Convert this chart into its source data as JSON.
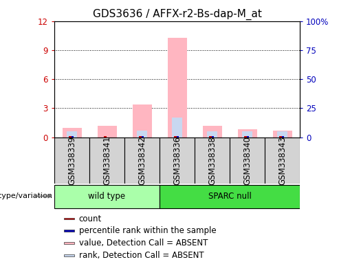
{
  "title": "GDS3636 / AFFX-r2-Bs-dap-M_at",
  "samples": [
    "GSM338339",
    "GSM338341",
    "GSM338342",
    "GSM338336",
    "GSM338338",
    "GSM338340",
    "GSM338343"
  ],
  "pink_bars": [
    1.0,
    1.2,
    3.4,
    10.3,
    1.2,
    0.8,
    0.7
  ],
  "light_blue_bars": [
    5.0,
    0.0,
    6.0,
    17.0,
    5.0,
    5.0,
    5.0
  ],
  "red_bar_heights": [
    0.12,
    0.12,
    0.12,
    0.12,
    0.12,
    0.12,
    0.12
  ],
  "blue_bar_heights": [
    0.12,
    0.0,
    0.12,
    0.12,
    0.12,
    0.12,
    0.12
  ],
  "ylim_left": [
    0,
    12
  ],
  "ylim_right": [
    0,
    100
  ],
  "yticks_left": [
    0,
    3,
    6,
    9,
    12
  ],
  "ytick_labels_left": [
    "0",
    "3",
    "6",
    "9",
    "12"
  ],
  "yticks_right": [
    0,
    25,
    50,
    75,
    100
  ],
  "ytick_labels_right": [
    "0",
    "25",
    "50",
    "75",
    "100%"
  ],
  "groups": [
    {
      "label": "wild type",
      "start": 0,
      "end": 3,
      "color": "#AAFFAA"
    },
    {
      "label": "SPARC null",
      "start": 3,
      "end": 7,
      "color": "#44DD44"
    }
  ],
  "group_row_label": "genotype/variation",
  "legend_items": [
    {
      "color": "#CC0000",
      "label": "count"
    },
    {
      "color": "#0000BB",
      "label": "percentile rank within the sample"
    },
    {
      "color": "#FFB6C1",
      "label": "value, Detection Call = ABSENT"
    },
    {
      "color": "#C8D8F0",
      "label": "rank, Detection Call = ABSENT"
    }
  ],
  "bar_width": 0.55,
  "red_bar_width": 0.08,
  "blue_bar_width": 0.06,
  "background_color": "#FFFFFF",
  "plot_bg_color": "#FFFFFF",
  "label_color_left": "#CC0000",
  "label_color_right": "#0000BB",
  "title_fontsize": 11,
  "tick_fontsize": 8.5,
  "legend_fontsize": 8.5,
  "sample_box_color": "#D3D3D3",
  "sample_box_edge": "#888888"
}
